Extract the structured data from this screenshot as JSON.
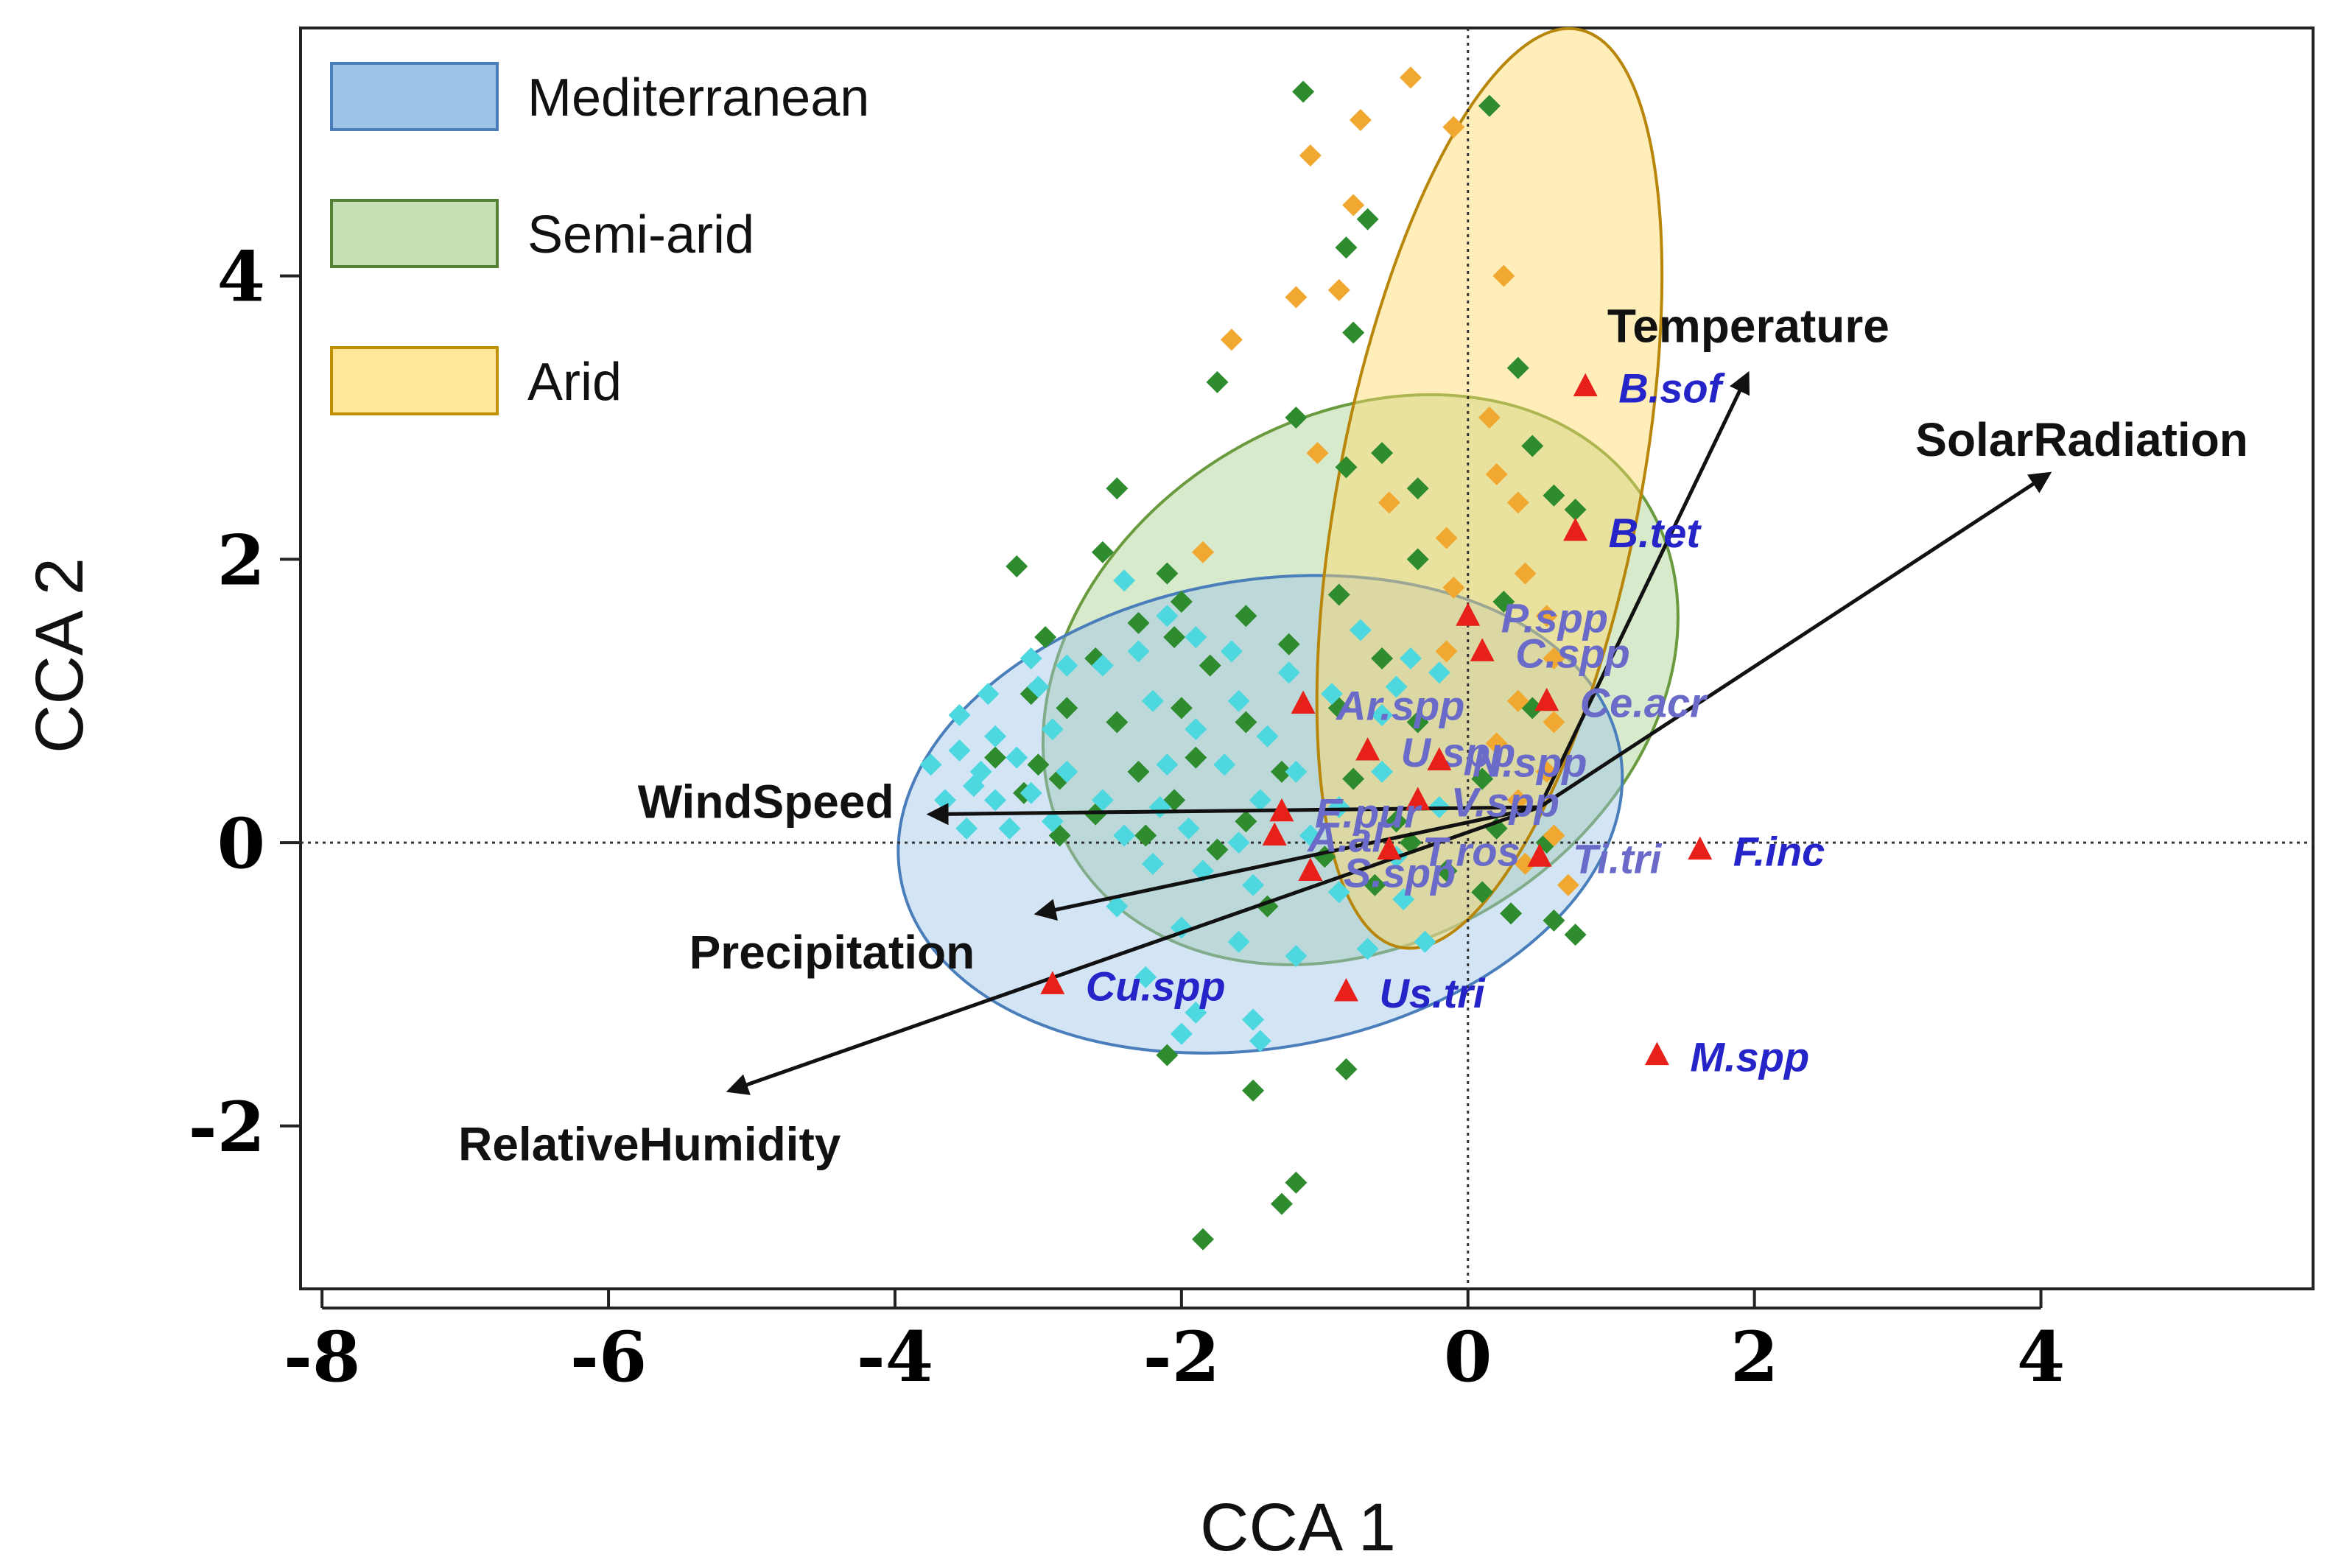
{
  "chart_data": {
    "type": "scatter",
    "xlabel": "CCA 1",
    "ylabel": "CCA 2",
    "xlim": [
      -8.15,
      5.9
    ],
    "ylim": [
      -3.15,
      5.75
    ],
    "xticks": [
      -8,
      -6,
      -4,
      -2,
      0,
      2,
      4
    ],
    "yticks": [
      -2,
      0,
      2,
      4
    ],
    "reference_lines": {
      "x": 0,
      "y": 0,
      "style": "dotted"
    },
    "legend": {
      "placement": "top-left",
      "entries": [
        {
          "label": "Mediterranean",
          "fill": "#9dc3e6",
          "stroke": "#4a7ebb"
        },
        {
          "label": "Semi-arid",
          "fill": "#c5e0b4",
          "stroke": "#548235"
        },
        {
          "label": "Arid",
          "fill": "#ffe699",
          "stroke": "#bf9000"
        }
      ]
    },
    "ellipses": [
      {
        "group": "Semi-arid",
        "center": [
          -0.75,
          1.15
        ],
        "rx": 2.35,
        "ry": 1.85,
        "angle_deg": -32,
        "fill": "#a9d18e",
        "stroke": "#6a9a3e"
      },
      {
        "group": "Mediterranean",
        "center": [
          -1.45,
          0.2
        ],
        "rx": 2.55,
        "ry": 1.65,
        "angle_deg": -10,
        "fill": "#9dc3e6",
        "stroke": "#4a7ebb"
      },
      {
        "group": "Arid",
        "center": [
          0.15,
          2.5
        ],
        "rx": 1.05,
        "ry": 3.3,
        "angle_deg": 11,
        "fill": "#ffd966",
        "stroke": "#b8860b"
      }
    ],
    "arrows": [
      {
        "label": "Temperature",
        "end": [
          1.95,
          3.3
        ],
        "label_anchor": "start"
      },
      {
        "label": "SolarRadiation",
        "end": [
          4.05,
          2.6
        ],
        "label_anchor": "start"
      },
      {
        "label": "WindSpeed",
        "end": [
          -3.75,
          0.2
        ],
        "label_anchor": "end"
      },
      {
        "label": "Precipitation",
        "end": [
          -3.0,
          -0.5
        ],
        "label_anchor": "end"
      },
      {
        "label": "RelativeHumidity",
        "end": [
          -5.15,
          -1.75
        ],
        "label_anchor": "end"
      }
    ],
    "species": [
      {
        "label": "B.sof",
        "x": 0.82,
        "y": 3.22
      },
      {
        "label": "B.tet",
        "x": 0.75,
        "y": 2.2
      },
      {
        "label": "P.spp",
        "x": 0.0,
        "y": 1.6
      },
      {
        "label": "C.spp",
        "x": 0.1,
        "y": 1.35
      },
      {
        "label": "Ce.acr",
        "x": 0.55,
        "y": 1.0
      },
      {
        "label": "F.inc",
        "x": 1.62,
        "y": -0.05
      },
      {
        "label": "M.spp",
        "x": 1.32,
        "y": -1.5
      },
      {
        "label": "Ar.spp",
        "x": -1.15,
        "y": 0.98
      },
      {
        "label": "U.spp",
        "x": -0.7,
        "y": 0.65
      },
      {
        "label": "N.spp",
        "x": -0.2,
        "y": 0.58
      },
      {
        "label": "V.spp",
        "x": -0.35,
        "y": 0.3
      },
      {
        "label": "E.pur",
        "x": -1.3,
        "y": 0.22
      },
      {
        "label": "A.al",
        "x": -1.35,
        "y": 0.05
      },
      {
        "label": "T.ros",
        "x": -0.55,
        "y": -0.05
      },
      {
        "label": "S.spp",
        "x": -1.1,
        "y": -0.2
      },
      {
        "label": "Ti.tri",
        "x": 0.5,
        "y": -0.1
      },
      {
        "label": "Cu.spp",
        "x": -2.9,
        "y": -1.0
      },
      {
        "label": "Us.tri",
        "x": -0.85,
        "y": -1.05
      }
    ],
    "series": [
      {
        "name": "Semi-arid sites",
        "color": "#2e8b2e",
        "points": [
          [
            -1.15,
            5.3
          ],
          [
            0.15,
            5.2
          ],
          [
            -0.85,
            4.2
          ],
          [
            -0.7,
            4.4
          ],
          [
            -0.8,
            3.6
          ],
          [
            -1.75,
            3.25
          ],
          [
            0.35,
            3.35
          ],
          [
            0.45,
            2.8
          ],
          [
            -2.45,
            2.5
          ],
          [
            -1.2,
            3.0
          ],
          [
            -0.85,
            2.65
          ],
          [
            -0.6,
            2.75
          ],
          [
            -0.35,
            2.5
          ],
          [
            0.6,
            2.45
          ],
          [
            0.75,
            2.35
          ],
          [
            -3.15,
            1.95
          ],
          [
            -2.55,
            2.05
          ],
          [
            -2.1,
            1.9
          ],
          [
            -2.0,
            1.7
          ],
          [
            -1.55,
            1.6
          ],
          [
            -0.9,
            1.75
          ],
          [
            -0.35,
            2.0
          ],
          [
            0.25,
            1.7
          ],
          [
            -2.95,
            1.45
          ],
          [
            -2.6,
            1.3
          ],
          [
            -2.3,
            1.55
          ],
          [
            -2.05,
            1.45
          ],
          [
            -1.8,
            1.25
          ],
          [
            -1.25,
            1.4
          ],
          [
            -0.6,
            1.3
          ],
          [
            -3.05,
            1.05
          ],
          [
            -2.8,
            0.95
          ],
          [
            -2.45,
            0.85
          ],
          [
            -2.0,
            0.95
          ],
          [
            -1.55,
            0.85
          ],
          [
            -0.9,
            0.95
          ],
          [
            -0.35,
            0.85
          ],
          [
            0.45,
            0.95
          ],
          [
            -3.3,
            0.6
          ],
          [
            -3.0,
            0.55
          ],
          [
            -2.85,
            0.45
          ],
          [
            -2.3,
            0.5
          ],
          [
            -1.9,
            0.6
          ],
          [
            -1.3,
            0.5
          ],
          [
            -0.8,
            0.45
          ],
          [
            0.1,
            0.45
          ],
          [
            -3.1,
            0.35
          ],
          [
            -2.6,
            0.2
          ],
          [
            -2.05,
            0.3
          ],
          [
            -1.55,
            0.15
          ],
          [
            -0.5,
            0.15
          ],
          [
            0.2,
            0.1
          ],
          [
            -2.85,
            0.05
          ],
          [
            -2.25,
            0.05
          ],
          [
            -1.75,
            -0.05
          ],
          [
            -1.0,
            -0.1
          ],
          [
            -0.4,
            0.0
          ],
          [
            0.55,
            0.0
          ],
          [
            -0.15,
            -0.2
          ],
          [
            0.1,
            -0.35
          ],
          [
            0.3,
            -0.5
          ],
          [
            0.6,
            -0.55
          ],
          [
            0.75,
            -0.65
          ],
          [
            -0.65,
            -0.3
          ],
          [
            -1.4,
            -0.45
          ],
          [
            -2.1,
            -1.5
          ],
          [
            -1.5,
            -1.75
          ],
          [
            -0.85,
            -1.6
          ],
          [
            -1.3,
            -2.55
          ],
          [
            -1.2,
            -2.4
          ],
          [
            -1.85,
            -2.8
          ]
        ]
      },
      {
        "name": "Arid sites",
        "color": "#f0a830",
        "points": [
          [
            -0.75,
            5.1
          ],
          [
            -0.4,
            5.4
          ],
          [
            -0.1,
            5.05
          ],
          [
            -1.1,
            4.85
          ],
          [
            -0.8,
            4.5
          ],
          [
            -0.9,
            3.9
          ],
          [
            -1.2,
            3.85
          ],
          [
            -1.65,
            3.55
          ],
          [
            0.25,
            4.0
          ],
          [
            0.15,
            3.0
          ],
          [
            0.2,
            2.6
          ],
          [
            0.35,
            2.4
          ],
          [
            -1.05,
            2.75
          ],
          [
            -0.55,
            2.4
          ],
          [
            -0.15,
            2.15
          ],
          [
            -1.85,
            2.05
          ],
          [
            -0.1,
            1.8
          ],
          [
            0.4,
            1.9
          ],
          [
            0.55,
            1.6
          ],
          [
            0.6,
            1.3
          ],
          [
            -0.15,
            1.35
          ],
          [
            0.35,
            1.0
          ],
          [
            0.6,
            0.85
          ],
          [
            0.2,
            0.7
          ],
          [
            0.55,
            0.5
          ],
          [
            0.35,
            0.3
          ],
          [
            0.6,
            0.05
          ],
          [
            0.4,
            -0.15
          ],
          [
            0.7,
            -0.3
          ]
        ]
      },
      {
        "name": "Mediterranean sites",
        "color": "#4dd8e0",
        "points": [
          [
            -2.4,
            1.85
          ],
          [
            -2.1,
            1.6
          ],
          [
            -1.9,
            1.45
          ],
          [
            -3.05,
            1.3
          ],
          [
            -2.8,
            1.25
          ],
          [
            -2.55,
            1.25
          ],
          [
            -2.3,
            1.35
          ],
          [
            -1.65,
            1.35
          ],
          [
            -1.25,
            1.2
          ],
          [
            -0.75,
            1.5
          ],
          [
            -0.4,
            1.3
          ],
          [
            -3.35,
            1.05
          ],
          [
            -3.0,
            1.1
          ],
          [
            -2.2,
            1.0
          ],
          [
            -1.6,
            1.0
          ],
          [
            -0.95,
            1.05
          ],
          [
            -0.5,
            1.1
          ],
          [
            -0.2,
            1.2
          ],
          [
            -3.55,
            0.9
          ],
          [
            -3.3,
            0.75
          ],
          [
            -2.9,
            0.8
          ],
          [
            -1.9,
            0.8
          ],
          [
            -1.4,
            0.75
          ],
          [
            -0.6,
            0.9
          ],
          [
            -3.75,
            0.55
          ],
          [
            -3.55,
            0.65
          ],
          [
            -3.4,
            0.5
          ],
          [
            -3.15,
            0.6
          ],
          [
            -2.8,
            0.5
          ],
          [
            -2.1,
            0.55
          ],
          [
            -1.7,
            0.55
          ],
          [
            -1.2,
            0.5
          ],
          [
            -0.6,
            0.5
          ],
          [
            -3.65,
            0.3
          ],
          [
            -3.45,
            0.4
          ],
          [
            -3.3,
            0.3
          ],
          [
            -3.05,
            0.35
          ],
          [
            -2.55,
            0.3
          ],
          [
            -2.15,
            0.25
          ],
          [
            -1.45,
            0.3
          ],
          [
            -0.9,
            0.25
          ],
          [
            -0.2,
            0.25
          ],
          [
            -3.5,
            0.1
          ],
          [
            -3.2,
            0.1
          ],
          [
            -2.9,
            0.15
          ],
          [
            -2.4,
            0.05
          ],
          [
            -1.95,
            0.1
          ],
          [
            -1.6,
            0.0
          ],
          [
            -1.1,
            0.05
          ],
          [
            -0.5,
            -0.1
          ],
          [
            -2.2,
            -0.15
          ],
          [
            -1.85,
            -0.2
          ],
          [
            -1.5,
            -0.3
          ],
          [
            -0.9,
            -0.35
          ],
          [
            -0.45,
            -0.4
          ],
          [
            -2.45,
            -0.45
          ],
          [
            -2.0,
            -0.6
          ],
          [
            -1.6,
            -0.7
          ],
          [
            -1.2,
            -0.8
          ],
          [
            -0.7,
            -0.75
          ],
          [
            -0.3,
            -0.7
          ],
          [
            -2.25,
            -0.95
          ],
          [
            -1.9,
            -1.2
          ],
          [
            -1.5,
            -1.25
          ],
          [
            -2.0,
            -1.35
          ],
          [
            -1.45,
            -1.4
          ]
        ]
      }
    ]
  }
}
